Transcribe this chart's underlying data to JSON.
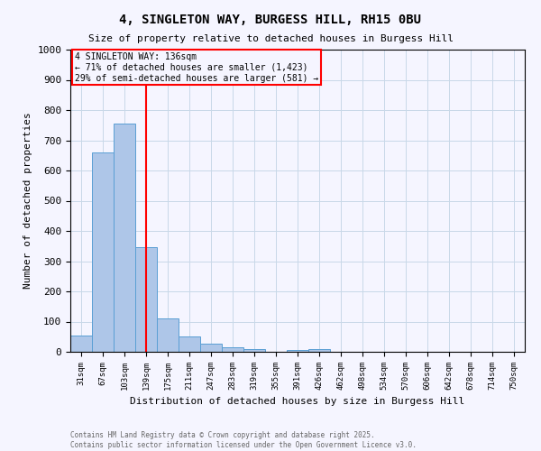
{
  "title": "4, SINGLETON WAY, BURGESS HILL, RH15 0BU",
  "subtitle": "Size of property relative to detached houses in Burgess Hill",
  "xlabel": "Distribution of detached houses by size in Burgess Hill",
  "ylabel": "Number of detached properties",
  "bar_labels": [
    "31sqm",
    "67sqm",
    "103sqm",
    "139sqm",
    "175sqm",
    "211sqm",
    "247sqm",
    "283sqm",
    "319sqm",
    "355sqm",
    "391sqm",
    "426sqm",
    "462sqm",
    "498sqm",
    "534sqm",
    "570sqm",
    "606sqm",
    "642sqm",
    "678sqm",
    "714sqm",
    "750sqm"
  ],
  "bar_heights": [
    55,
    660,
    755,
    345,
    110,
    50,
    28,
    16,
    10,
    0,
    5,
    8,
    0,
    0,
    0,
    0,
    0,
    0,
    0,
    0,
    0
  ],
  "bar_color": "#aec6e8",
  "bar_edge_color": "#5a9fd4",
  "ylim": [
    0,
    1000
  ],
  "yticks": [
    0,
    100,
    200,
    300,
    400,
    500,
    600,
    700,
    800,
    900,
    1000
  ],
  "red_line_x": 3.5,
  "annotation_text": "4 SINGLETON WAY: 136sqm\n← 71% of detached houses are smaller (1,423)\n29% of semi-detached houses are larger (581) →",
  "footer_line1": "Contains HM Land Registry data © Crown copyright and database right 2025.",
  "footer_line2": "Contains public sector information licensed under the Open Government Licence v3.0.",
  "background_color": "#f5f5ff",
  "grid_color": "#c8d8e8"
}
